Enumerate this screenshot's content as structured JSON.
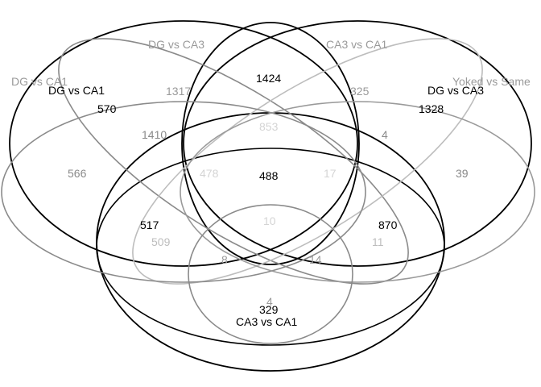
{
  "colors": {
    "black": "#000000",
    "dark_gray": "#6e6e6e",
    "mid_gray": "#9a9a9a",
    "light_gray": "#bdbdbd",
    "pale_gray": "#d4d4d4"
  },
  "sets": {
    "outer_dg_ca1": "DG vs CA1",
    "ellipse_dg_ca1": "DG vs CA1",
    "ellipse_dg_ca3_left": "DG vs CA3",
    "ellipse_ca3_ca1_right": "CA3 vs CA1",
    "outer_yoked_vs_same": "Yoked vs Same",
    "ellipse_dg_ca3_right": "DG vs CA3",
    "bottom_ca3_ca1": "CA3 vs CA1"
  },
  "counts": {
    "n1424": "1424",
    "n1317": "1317",
    "n325": "325",
    "n570": "570",
    "n1328": "1328",
    "n853": "853",
    "n1410": "1410",
    "n4a": "4",
    "n566": "566",
    "n478": "478",
    "n488": "488",
    "n17": "17",
    "n39": "39",
    "n10": "10",
    "n517": "517",
    "n870": "870",
    "n509": "509",
    "n11": "11",
    "n8": "8",
    "n14": "14",
    "n4b": "4",
    "n329": "329"
  }
}
